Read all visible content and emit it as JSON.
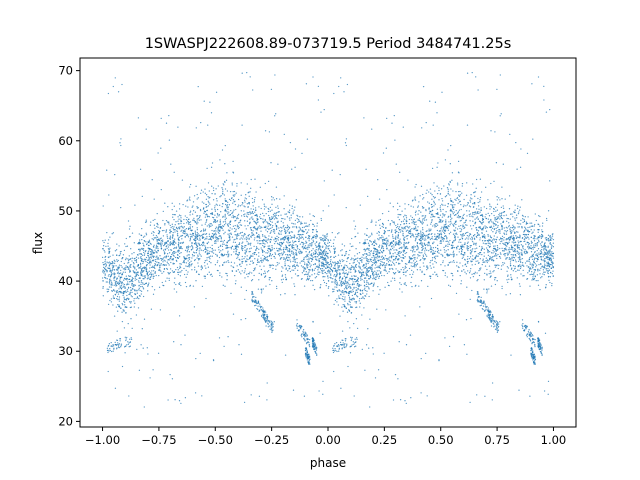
{
  "chart_data": {
    "type": "scatter",
    "title": "1SWASPJ222608.89-073719.5 Period 3484741.25s",
    "xlabel": "phase",
    "ylabel": "flux",
    "xlim": [
      -1.1,
      1.1
    ],
    "ylim": [
      19.2,
      71.8
    ],
    "xticks": [
      -1.0,
      -0.75,
      -0.5,
      -0.25,
      0.0,
      0.25,
      0.5,
      0.75,
      1.0
    ],
    "xtick_labels": [
      "−1.00",
      "−0.75",
      "−0.50",
      "−0.25",
      "0.00",
      "0.25",
      "0.50",
      "0.75",
      "1.00"
    ],
    "yticks": [
      20,
      30,
      40,
      50,
      60,
      70
    ],
    "ytick_labels": [
      "20",
      "30",
      "40",
      "50",
      "60",
      "70"
    ],
    "grid": false,
    "marker_color": "#1f77b4",
    "description_note": "Phase-folded light curve; pattern repeats with period 1 in phase (-1..0 mirrors 0..1).",
    "band_center": [
      {
        "phase": 0.0,
        "flux": 43.0
      },
      {
        "phase": 0.05,
        "flux": 40.0
      },
      {
        "phase": 0.1,
        "flux": 39.0
      },
      {
        "phase": 0.15,
        "flux": 41.0
      },
      {
        "phase": 0.2,
        "flux": 43.0
      },
      {
        "phase": 0.25,
        "flux": 44.5
      },
      {
        "phase": 0.3,
        "flux": 45.0
      },
      {
        "phase": 0.35,
        "flux": 45.5
      },
      {
        "phase": 0.4,
        "flux": 46.0
      },
      {
        "phase": 0.45,
        "flux": 46.5
      },
      {
        "phase": 0.5,
        "flux": 47.0
      },
      {
        "phase": 0.55,
        "flux": 47.5
      },
      {
        "phase": 0.6,
        "flux": 47.0
      },
      {
        "phase": 0.65,
        "flux": 46.5
      },
      {
        "phase": 0.7,
        "flux": 46.0
      },
      {
        "phase": 0.75,
        "flux": 46.0
      },
      {
        "phase": 0.8,
        "flux": 45.5
      },
      {
        "phase": 0.85,
        "flux": 45.0
      },
      {
        "phase": 0.9,
        "flux": 44.5
      },
      {
        "phase": 0.95,
        "flux": 44.0
      },
      {
        "phase": 1.0,
        "flux": 43.0
      }
    ],
    "band_halfwidth": [
      {
        "phase": 0.0,
        "dflux": 3.5
      },
      {
        "phase": 0.1,
        "dflux": 4.5
      },
      {
        "phase": 0.25,
        "dflux": 4.0
      },
      {
        "phase": 0.5,
        "dflux": 5.5
      },
      {
        "phase": 0.6,
        "dflux": 6.5
      },
      {
        "phase": 0.75,
        "dflux": 5.0
      },
      {
        "phase": 1.0,
        "dflux": 3.5
      }
    ],
    "low_streaks": [
      {
        "phase_start": 0.02,
        "phase_end": 0.13,
        "flux_start": 30.5,
        "flux_end": 31.5
      },
      {
        "phase_start": 0.66,
        "phase_end": 0.72,
        "flux_start": 38.0,
        "flux_end": 35.0
      },
      {
        "phase_start": 0.71,
        "phase_end": 0.76,
        "flux_start": 35.5,
        "flux_end": 33.0
      },
      {
        "phase_start": 0.86,
        "phase_end": 0.92,
        "flux_start": 34.0,
        "flux_end": 31.0
      },
      {
        "phase_start": 0.9,
        "phase_end": 0.92,
        "flux_start": 30.0,
        "flux_end": 28.5
      },
      {
        "phase_start": 0.93,
        "phase_end": 0.95,
        "flux_start": 31.5,
        "flux_end": 30.0
      }
    ],
    "outlier_range": [
      22,
      70
    ]
  }
}
